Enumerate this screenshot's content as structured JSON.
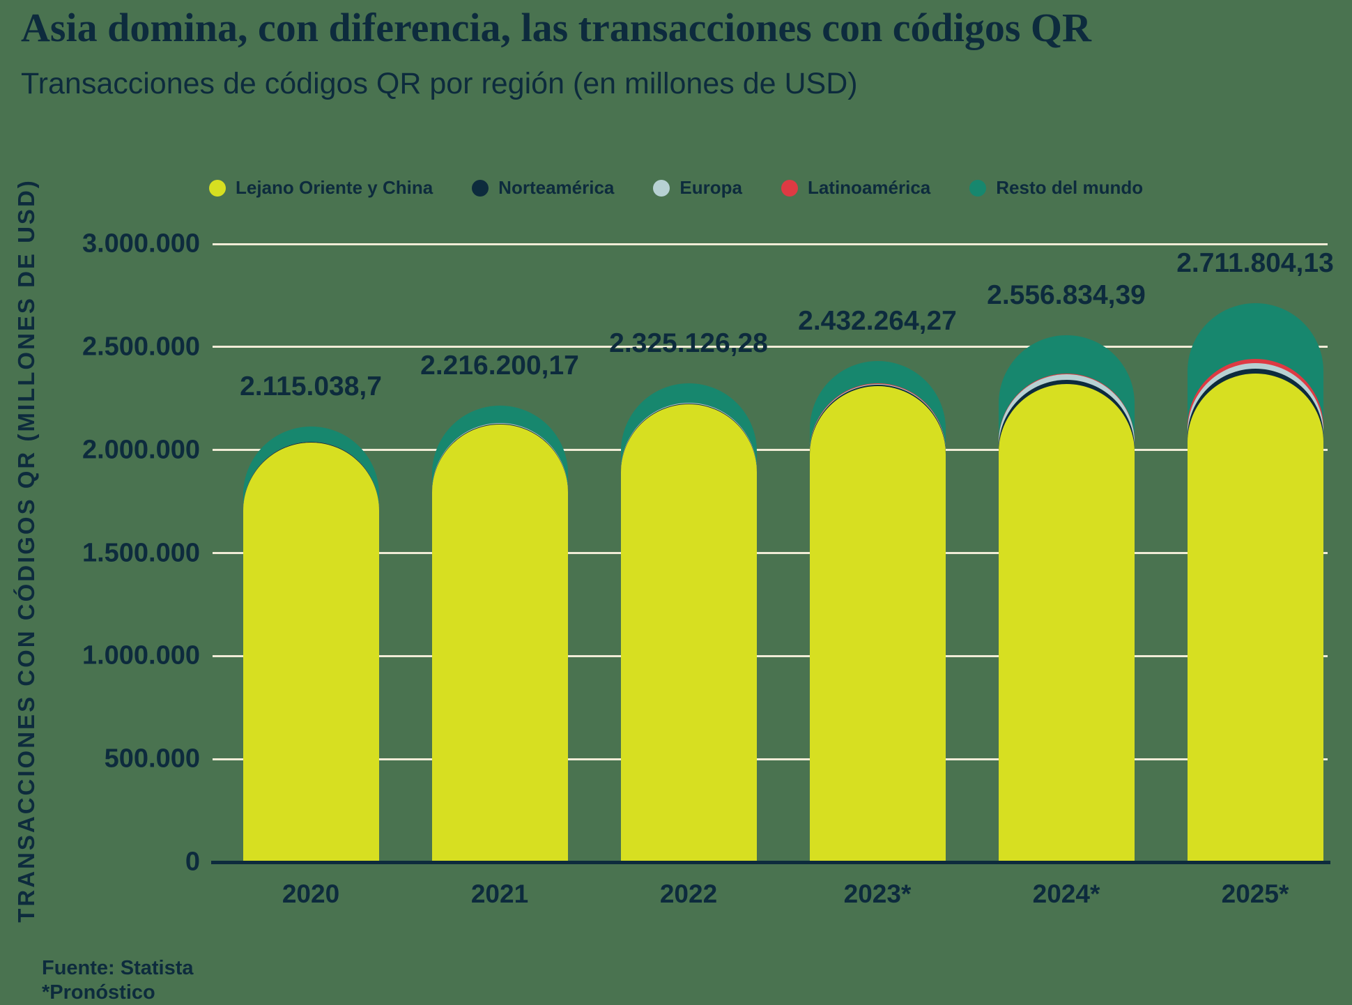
{
  "header": {
    "title": "Asia domina, con diferencia, las transacciones con códigos QR",
    "subtitle": "Transacciones de códigos QR por región (en millones de USD)"
  },
  "colors": {
    "background": "#4a7350",
    "text": "#0d2b3d",
    "gridline": "#f1ecd7",
    "axis_line": "#0d2b3d"
  },
  "legend": {
    "position": "top",
    "items": [
      {
        "label": "Lejano Oriente y China",
        "color": "#d7df21"
      },
      {
        "label": "Norteamérica",
        "color": "#0d2b3d"
      },
      {
        "label": "Europa",
        "color": "#b7d1d3"
      },
      {
        "label": "Latinoamérica",
        "color": "#de3a43"
      },
      {
        "label": "Resto del mundo",
        "color": "#17876e"
      }
    ]
  },
  "chart_data": {
    "type": "bar",
    "stacked": true,
    "rounded_tops": true,
    "title": "Asia domina, con diferencia, las transacciones con códigos QR",
    "subtitle": "Transacciones de códigos QR por región (en millones de USD)",
    "xlabel": "",
    "ylabel": "TRANSACCIONES CON CÓDIGOS QR (MILLONES DE USD)",
    "ylim": [
      0,
      3000000
    ],
    "grid": true,
    "legend_position": "top",
    "categories": [
      "2020",
      "2021",
      "2022",
      "2023*",
      "2024*",
      "2025*"
    ],
    "series": [
      {
        "name": "Lejano Oriente y China",
        "color": "#d7df21",
        "values": [
          2036000,
          2125000,
          2221626.28,
          2308964.27,
          2321834.39,
          2370000
        ]
      },
      {
        "name": "Norteamérica",
        "color": "#0d2b3d",
        "values": [
          2500,
          3200,
          4200,
          7000,
          20000,
          25000
        ]
      },
      {
        "name": "Europa",
        "color": "#b7d1d3",
        "values": [
          1800,
          2300,
          3100,
          4500,
          25000,
          28000
        ]
      },
      {
        "name": "Latinoamérica",
        "color": "#de3a43",
        "values": [
          700,
          900,
          1200,
          1800,
          5000,
          18000
        ]
      },
      {
        "name": "Resto del mundo",
        "color": "#17876e",
        "values": [
          74038.7,
          84800.17,
          95000,
          110000,
          185000,
          270804.13
        ]
      }
    ],
    "totals": [
      2115038.7,
      2216200.17,
      2325126.28,
      2432264.27,
      2556834.39,
      2711804.13
    ],
    "total_labels": [
      "2.115.038,7",
      "2.216.200,17",
      "2.325.126,28",
      "2.432.264,27",
      "2.556.834,39",
      "2.711.804,13"
    ],
    "yticks": [
      {
        "value": 0,
        "label": "0"
      },
      {
        "value": 500000,
        "label": "500.000"
      },
      {
        "value": 1000000,
        "label": "1.000.000"
      },
      {
        "value": 1500000,
        "label": "1.500.000"
      },
      {
        "value": 2000000,
        "label": "2.000.000"
      },
      {
        "value": 2500000,
        "label": "2.500.000"
      },
      {
        "value": 3000000,
        "label": "3.000.000"
      }
    ]
  },
  "footer": {
    "source": "Fuente: Statista",
    "note": "*Pronóstico"
  }
}
